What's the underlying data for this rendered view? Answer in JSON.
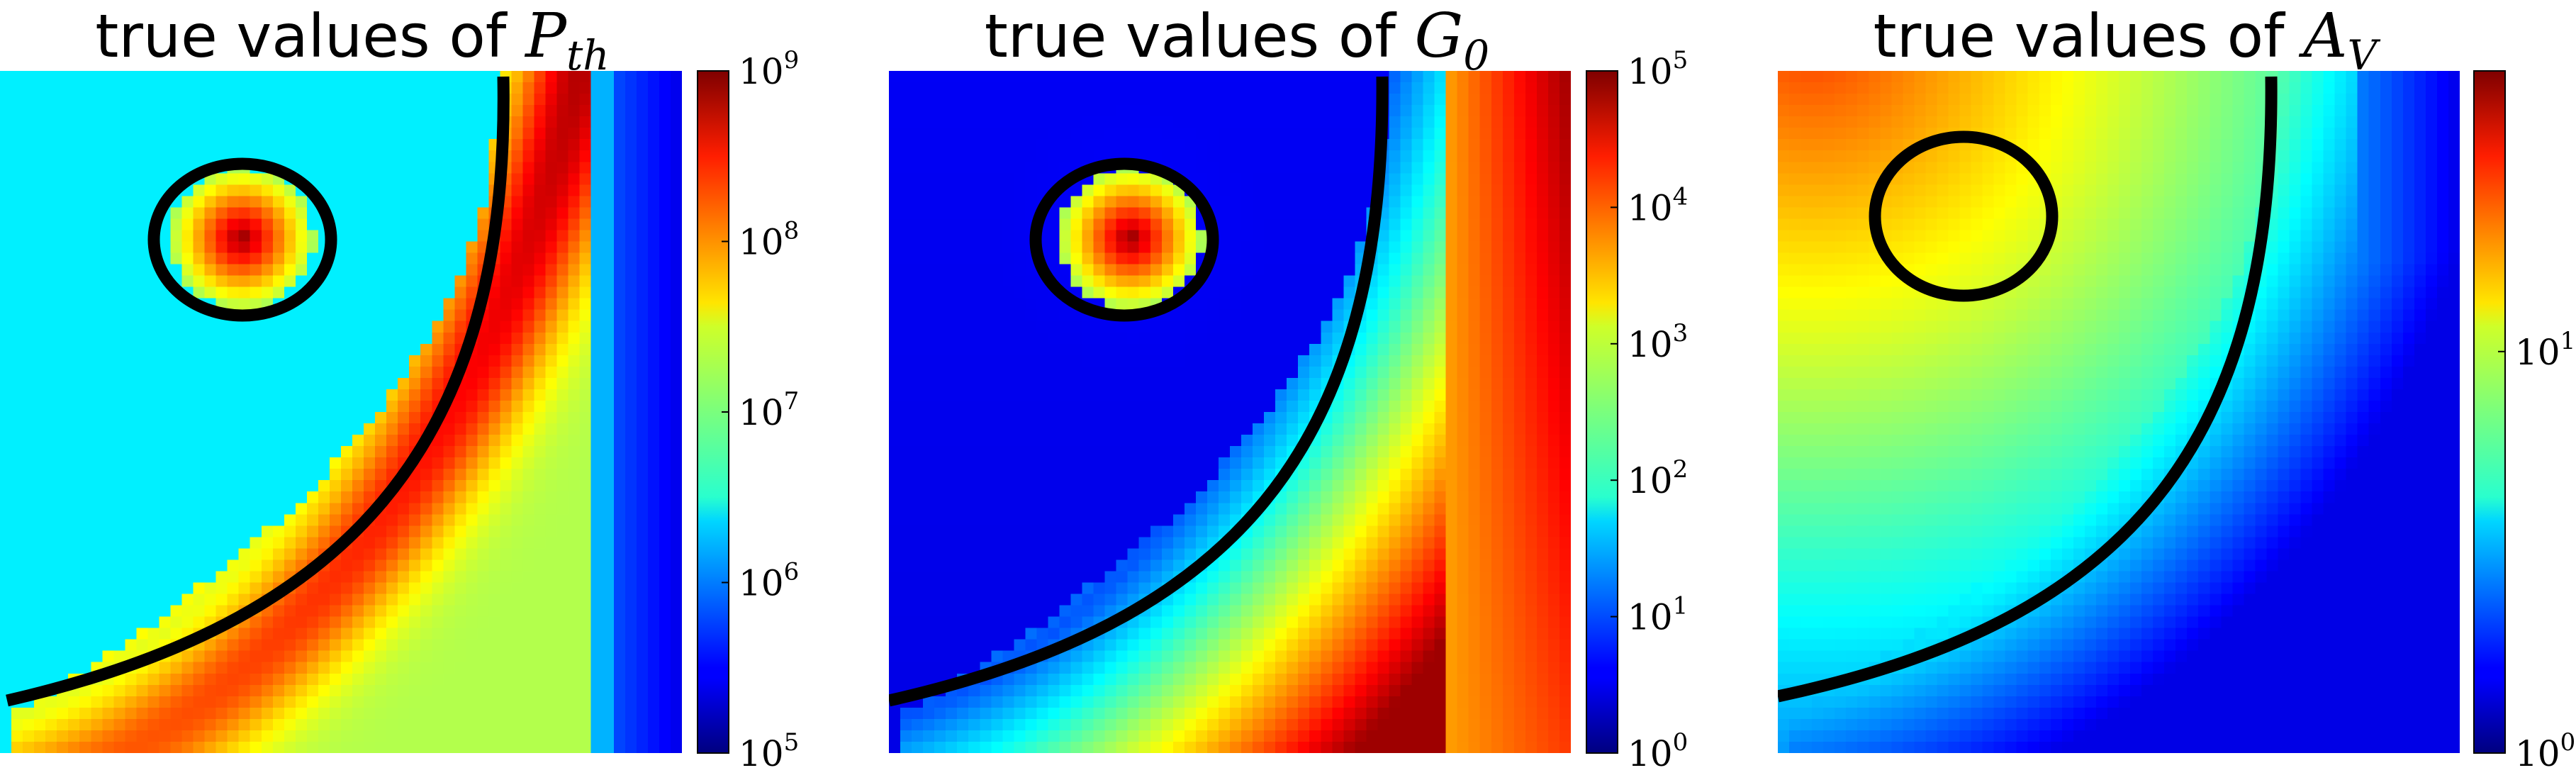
{
  "chart_data": [
    {
      "type": "heatmap",
      "title": {
        "prefix": "true values of ",
        "symbol": "P",
        "subscript": "th"
      },
      "colormap": "jet",
      "colorbar": {
        "scale": "log",
        "range": [
          100000,
          1000000000
        ],
        "ticks": [
          {
            "base": "10",
            "exp": "5"
          },
          {
            "base": "10",
            "exp": "6"
          },
          {
            "base": "10",
            "exp": "7"
          },
          {
            "base": "10",
            "exp": "8"
          },
          {
            "base": "10",
            "exp": "9"
          }
        ]
      },
      "overlays": [
        "black contour arc",
        "black circle around central peak"
      ]
    },
    {
      "type": "heatmap",
      "title": {
        "prefix": "true values of ",
        "symbol": "G",
        "subscript": "0"
      },
      "colormap": "jet",
      "colorbar": {
        "scale": "log",
        "range": [
          1,
          100000
        ],
        "ticks": [
          {
            "base": "10",
            "exp": "0"
          },
          {
            "base": "10",
            "exp": "1"
          },
          {
            "base": "10",
            "exp": "2"
          },
          {
            "base": "10",
            "exp": "3"
          },
          {
            "base": "10",
            "exp": "4"
          },
          {
            "base": "10",
            "exp": "5"
          }
        ]
      },
      "overlays": [
        "black contour arc",
        "black circle around central peak"
      ]
    },
    {
      "type": "heatmap",
      "title": {
        "prefix": "true values of ",
        "symbol": "A",
        "subscript": "V"
      },
      "colormap": "jet",
      "colorbar": {
        "scale": "log",
        "range": [
          1,
          50
        ],
        "ticks": [
          {
            "base": "10",
            "exp": "0"
          },
          {
            "base": "10",
            "exp": "1"
          }
        ]
      },
      "overlays": [
        "black contour arc",
        "black circle"
      ]
    }
  ]
}
